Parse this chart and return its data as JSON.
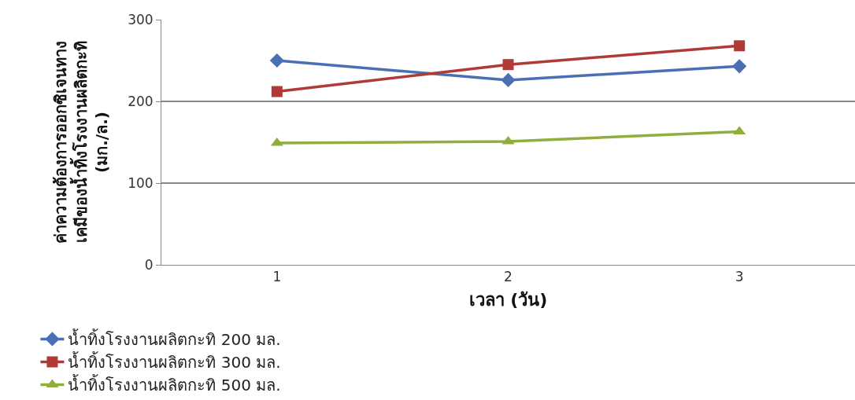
{
  "chart_data": {
    "type": "line",
    "xlabel": "เวลา (วัน)",
    "ylabel": "ค่าความต้องการออกซิเจนทาง\nเคมีของน้ำทิ้งโรงงานผลิตกะทิ\n(มก./ล.)",
    "categories": [
      "1",
      "2",
      "3"
    ],
    "series": [
      {
        "name": "น้ำทิ้งโรงงานผลิตกะทิ 200 มล.",
        "color": "#4a6fb5",
        "marker": "diamond",
        "values": [
          250,
          226,
          243
        ]
      },
      {
        "name": "น้ำทิ้งโรงงานผลิตกะทิ 300 มล.",
        "color": "#b03a36",
        "marker": "square",
        "values": [
          212,
          245,
          268
        ]
      },
      {
        "name": "น้ำทิ้งโรงงานผลิตกะทิ 500 มล.",
        "color": "#8fae3e",
        "marker": "triangle",
        "values": [
          149,
          151,
          163
        ]
      }
    ],
    "ylim": [
      0,
      300
    ],
    "yticks": [
      0,
      100,
      200,
      300
    ],
    "grid": "y",
    "legend": "bottom",
    "line_style": "solid"
  }
}
